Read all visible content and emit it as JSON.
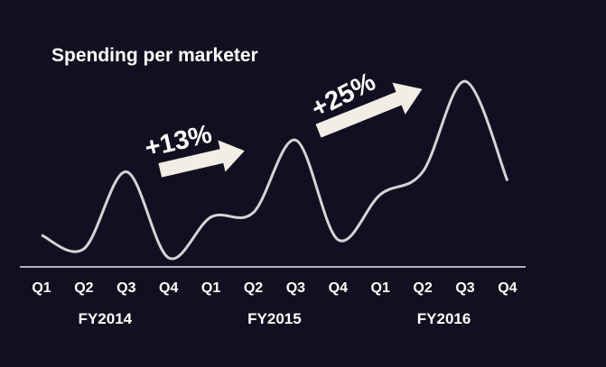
{
  "chart_data": {
    "type": "line",
    "title": "Spending per marketer",
    "xlabel": "",
    "ylabel": "",
    "categories": [
      "Q1",
      "Q2",
      "Q3",
      "Q4",
      "Q1",
      "Q2",
      "Q3",
      "Q4",
      "Q1",
      "Q2",
      "Q3",
      "Q4"
    ],
    "fiscal_years": [
      "FY2014",
      "FY2015",
      "FY2016"
    ],
    "series": [
      {
        "values": [
          7,
          4,
          21,
          2,
          11,
          12,
          28,
          6,
          16,
          21,
          41,
          19
        ]
      }
    ],
    "ylim": [
      0,
      45
    ],
    "grid": false,
    "legend": "none",
    "annotations": [
      "+13%",
      "+25%"
    ],
    "colors": {
      "background": "#121020",
      "line": "#d6d3d6",
      "arrow": "#f1eee6",
      "text": "#ffffff",
      "axis": "#e6e6e6"
    }
  }
}
